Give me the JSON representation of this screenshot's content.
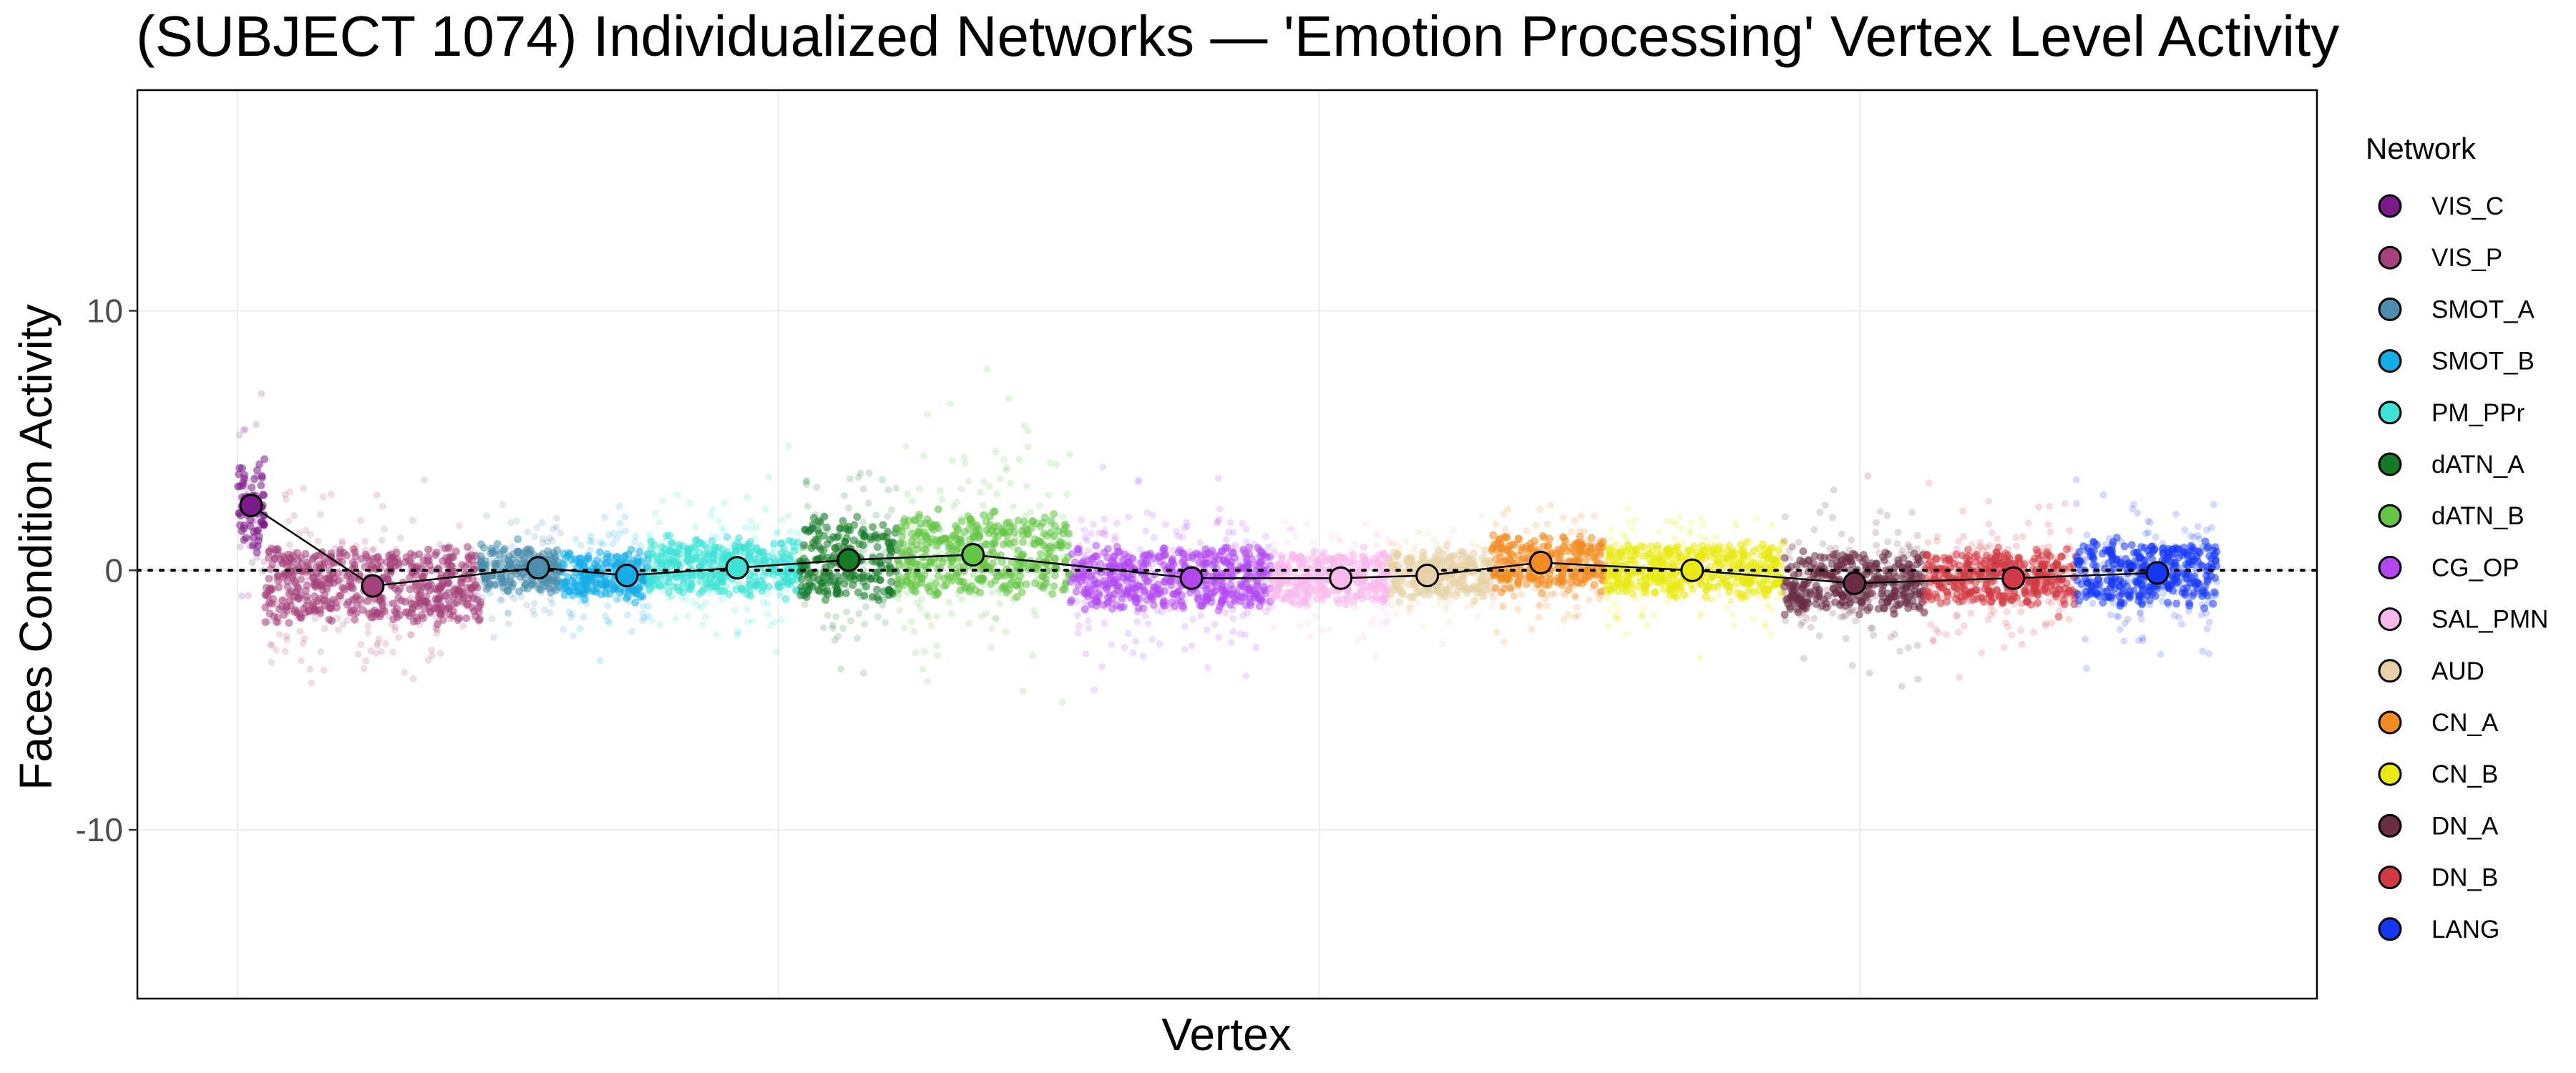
{
  "chart_data": {
    "type": "scatter",
    "title": "(SUBJECT 1074) Individualized Networks — 'Emotion Processing' Vertex Level Activity",
    "xlabel": "Vertex",
    "ylabel": "Faces Condition Activity",
    "ylim": [
      -16.5,
      18.5
    ],
    "y_ticks": [
      10,
      0,
      -10
    ],
    "y_tick_labels": [
      "10",
      "0",
      "-10"
    ],
    "x_ticks_labeled": false,
    "grid": true,
    "reference_line_y": 0,
    "legend": {
      "title": "Network",
      "placement": "right",
      "entries": [
        "VIS_C",
        "VIS_P",
        "SMOT_A",
        "SMOT_B",
        "PM_PPr",
        "dATN_A",
        "dATN_B",
        "CG_OP",
        "SAL_PMN",
        "AUD",
        "CN_A",
        "CN_B",
        "DN_A",
        "DN_B",
        "LANG"
      ]
    },
    "series": [
      {
        "name": "VIS_C",
        "color": "#7B1A88",
        "x_range": [
          0,
          250
        ],
        "mean": 2.5,
        "mean_x": 125,
        "band_half": 1.6,
        "spread": 1.9
      },
      {
        "name": "VIS_P",
        "color": "#A5417C",
        "x_range": [
          250,
          2250
        ],
        "mean": -0.6,
        "mean_x": 1250,
        "band_half": 1.3,
        "spread": 1.6
      },
      {
        "name": "SMOT_A",
        "color": "#4B8EAD",
        "x_range": [
          2250,
          3000
        ],
        "mean": 0.1,
        "mean_x": 2780,
        "band_half": 0.8,
        "spread": 1.2
      },
      {
        "name": "SMOT_B",
        "color": "#14ADE8",
        "x_range": [
          3000,
          3800
        ],
        "mean": -0.2,
        "mean_x": 3600,
        "band_half": 0.8,
        "spread": 1.3
      },
      {
        "name": "PM_PPr",
        "color": "#3EE2D6",
        "x_range": [
          3800,
          5200
        ],
        "mean": 0.1,
        "mean_x": 4620,
        "band_half": 0.9,
        "spread": 1.3
      },
      {
        "name": "dATN_A",
        "color": "#167B29",
        "x_range": [
          5200,
          6100
        ],
        "mean": 0.4,
        "mean_x": 5650,
        "band_half": 1.4,
        "spread": 1.7
      },
      {
        "name": "dATN_B",
        "color": "#64C546",
        "x_range": [
          6100,
          7700
        ],
        "mean": 0.6,
        "mean_x": 6800,
        "band_half": 1.5,
        "spread": 2.4
      },
      {
        "name": "CG_OP",
        "color": "#B348F0",
        "x_range": [
          7700,
          9550
        ],
        "mean": -0.3,
        "mean_x": 8820,
        "band_half": 1.1,
        "spread": 1.4
      },
      {
        "name": "SAL_PMN",
        "color": "#F8B8EC",
        "x_range": [
          9550,
          10650
        ],
        "mean": -0.3,
        "mean_x": 10200,
        "band_half": 0.9,
        "spread": 1.1
      },
      {
        "name": "AUD",
        "color": "#E8D1A8",
        "x_range": [
          10650,
          11600
        ],
        "mean": -0.2,
        "mean_x": 11000,
        "band_half": 0.8,
        "spread": 1.0
      },
      {
        "name": "CN_A",
        "color": "#F08C22",
        "x_range": [
          11600,
          12650
        ],
        "mean": 0.3,
        "mean_x": 12050,
        "band_half": 0.9,
        "spread": 1.1
      },
      {
        "name": "CN_B",
        "color": "#EAEA12",
        "x_range": [
          12650,
          14300
        ],
        "mean": 0.0,
        "mean_x": 13450,
        "band_half": 0.9,
        "spread": 1.1
      },
      {
        "name": "DN_A",
        "color": "#6A2D45",
        "x_range": [
          14300,
          15600
        ],
        "mean": -0.5,
        "mean_x": 14950,
        "band_half": 1.0,
        "spread": 1.5
      },
      {
        "name": "DN_B",
        "color": "#D13A44",
        "x_range": [
          15600,
          17000
        ],
        "mean": -0.3,
        "mean_x": 16420,
        "band_half": 0.9,
        "spread": 1.2
      },
      {
        "name": "LANG",
        "color": "#1638F5",
        "x_range": [
          17000,
          18300
        ],
        "mean": -0.1,
        "mean_x": 17750,
        "band_half": 1.1,
        "spread": 1.4
      }
    ]
  }
}
